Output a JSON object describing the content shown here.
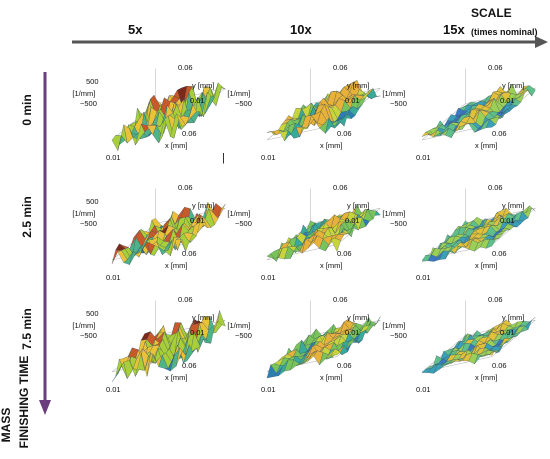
{
  "scale_axis": {
    "title": "SCALE",
    "subtitle": "(times nominal)",
    "levels": [
      "5x",
      "10x",
      "15x"
    ]
  },
  "time_axis": {
    "title_line1": "MASS",
    "title_line2": "FINISHING TIME",
    "levels": [
      "0 min",
      "2.5 min",
      "7.5 min"
    ]
  },
  "plot_labels": {
    "z_label": "κ₁ [1/mm]",
    "z_top": "500",
    "z_bottom": "−500",
    "y_label": "y [mm]",
    "y_top": "0.06",
    "y_bottom": "0.01",
    "x_label": "x [mm]",
    "x_right": "0.06",
    "x_left": "0.01"
  },
  "colors": {
    "arrow_scale": "#555555",
    "arrow_time": "#6a3d7c"
  },
  "cursor_mark": "|"
}
